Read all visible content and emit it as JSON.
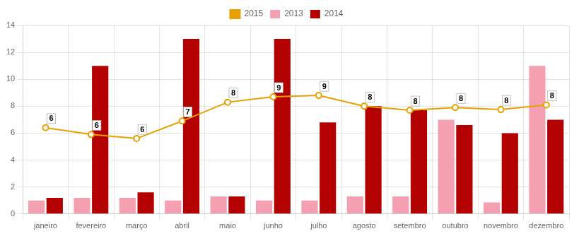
{
  "chart_data": {
    "type": "bar",
    "categories": [
      "janeiro",
      "fevereiro",
      "março",
      "abril",
      "maio",
      "junho",
      "julho",
      "agosto",
      "setembro",
      "outubro",
      "novembro",
      "dezembro"
    ],
    "series": [
      {
        "name": "2013",
        "type": "bar",
        "color": "#f4a0b0",
        "values": [
          1.0,
          1.2,
          1.2,
          1.0,
          1.3,
          1.0,
          1.0,
          1.3,
          1.3,
          7.0,
          0.85,
          11.0
        ]
      },
      {
        "name": "2014",
        "type": "bar",
        "color": "#b30000",
        "values": [
          1.2,
          11.0,
          1.6,
          13.0,
          1.3,
          13.0,
          6.8,
          8.0,
          7.7,
          6.6,
          6.0,
          7.0
        ]
      },
      {
        "name": "2015",
        "type": "line",
        "color": "#e8a000",
        "marker": "circle",
        "line_style": "solid",
        "values": [
          6.4,
          5.9,
          5.6,
          6.9,
          8.3,
          8.7,
          8.8,
          8.0,
          7.7,
          7.9,
          7.75,
          8.1
        ],
        "value_labels": [
          "6",
          "6",
          "6",
          "7",
          "8",
          "9",
          "9",
          "8",
          "8",
          "8",
          "8",
          "8"
        ]
      }
    ],
    "ylim": [
      0,
      14
    ],
    "yticks": [
      0,
      2,
      4,
      6,
      8,
      10,
      12,
      14
    ],
    "grid": true,
    "legend": "top"
  }
}
